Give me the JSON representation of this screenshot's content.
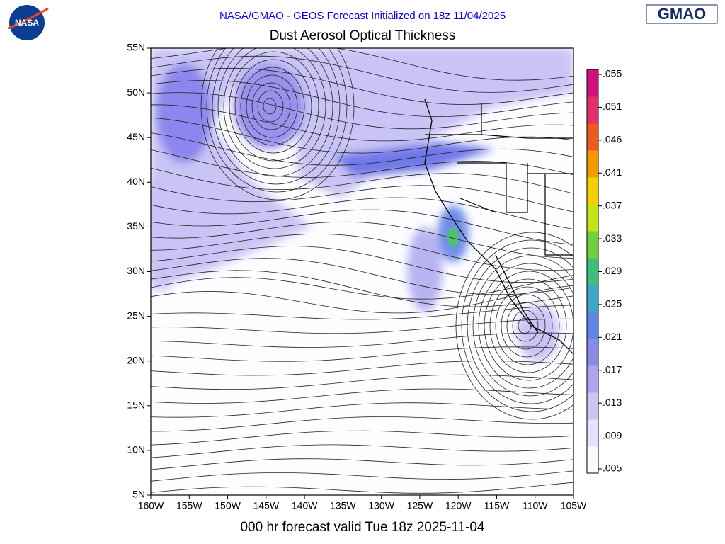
{
  "header": {
    "agency_logo": "NASA",
    "title": "NASA/GMAO - GEOS Forecast Initialized on 18z 11/04/2025",
    "org_logo": "GMAO"
  },
  "map": {
    "title": "Dust Aerosol Optical Thickness",
    "lat_labels": [
      "55N",
      "50N",
      "45N",
      "40N",
      "35N",
      "30N",
      "25N",
      "20N",
      "15N",
      "10N",
      "5N"
    ],
    "lon_labels": [
      "160W",
      "155W",
      "150W",
      "145W",
      "140W",
      "135W",
      "130W",
      "125W",
      "120W",
      "115W",
      "110W",
      "105W"
    ]
  },
  "colorbar": {
    "labels": [
      ".055",
      ".051",
      ".046",
      ".041",
      ".037",
      ".033",
      ".029",
      ".025",
      ".021",
      ".017",
      ".013",
      ".009",
      ".005"
    ]
  },
  "footer": {
    "valid_time": "000 hr forecast valid Tue 18z 2025-11-04"
  }
}
